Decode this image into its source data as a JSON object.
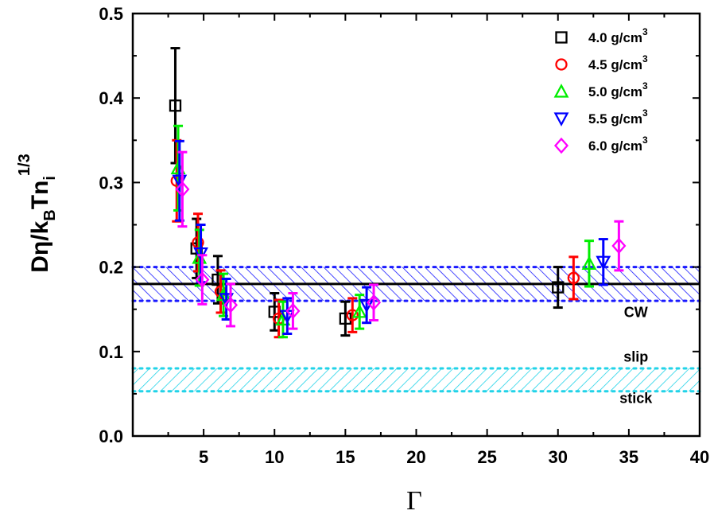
{
  "chart_data": {
    "type": "scatter",
    "xlabel": "Γ",
    "ylabel": {
      "main": "Dη/k",
      "sub1": "B",
      "mid": "Tn",
      "sub2": "i",
      "sup": "1/3"
    },
    "xlim": [
      0,
      40
    ],
    "ylim": [
      0.0,
      0.5
    ],
    "xticks": [
      5,
      10,
      15,
      20,
      25,
      30,
      35,
      40
    ],
    "yticks": [
      0.0,
      0.1,
      0.2,
      0.3,
      0.4,
      0.5
    ],
    "ytick_labels": [
      "0.0",
      "0.1",
      "0.2",
      "0.3",
      "0.4",
      "0.5"
    ],
    "legend_position": "top-right",
    "series": [
      {
        "name": "4.0 g/cm",
        "name_sup": "3",
        "color": "#000000",
        "marker": "square",
        "x": [
          3.0,
          4.5,
          6.0,
          10.0,
          15.0,
          30.0
        ],
        "y": [
          0.391,
          0.222,
          0.185,
          0.147,
          0.139,
          0.176
        ],
        "err": [
          0.068,
          0.035,
          0.028,
          0.022,
          0.02,
          0.024
        ]
      },
      {
        "name": "4.5 g/cm",
        "name_sup": "3",
        "color": "#ff0000",
        "marker": "circle",
        "x": [
          3.1,
          4.6,
          6.2,
          10.3,
          15.5,
          31.1
        ],
        "y": [
          0.302,
          0.229,
          0.171,
          0.139,
          0.143,
          0.187
        ],
        "err": [
          0.048,
          0.034,
          0.025,
          0.022,
          0.02,
          0.025
        ]
      },
      {
        "name": "5.0 g/cm",
        "name_sup": "3",
        "color": "#00ee00",
        "marker": "triangle-up",
        "x": [
          3.2,
          4.7,
          6.4,
          10.6,
          16.0,
          32.2
        ],
        "y": [
          0.317,
          0.211,
          0.167,
          0.138,
          0.147,
          0.204
        ],
        "err": [
          0.05,
          0.033,
          0.025,
          0.021,
          0.02,
          0.027
        ]
      },
      {
        "name": "5.5 g/cm",
        "name_sup": "3",
        "color": "#0000ff",
        "marker": "triangle-down",
        "x": [
          3.3,
          4.8,
          6.6,
          10.9,
          16.5,
          33.2
        ],
        "y": [
          0.302,
          0.216,
          0.162,
          0.142,
          0.155,
          0.206
        ],
        "err": [
          0.047,
          0.034,
          0.024,
          0.021,
          0.021,
          0.027
        ]
      },
      {
        "name": "6.0 g/cm",
        "name_sup": "3",
        "color": "#ff00ff",
        "marker": "diamond",
        "x": [
          3.5,
          4.9,
          6.9,
          11.3,
          17.0,
          34.3
        ],
        "y": [
          0.292,
          0.185,
          0.155,
          0.148,
          0.158,
          0.225
        ],
        "err": [
          0.044,
          0.029,
          0.025,
          0.021,
          0.021,
          0.029
        ]
      }
    ],
    "bands": [
      {
        "name": "CW",
        "center": 0.18,
        "low": 0.16,
        "high": 0.2,
        "color": "#1a1aff",
        "center_line_color": "#000000"
      },
      {
        "name": "slip-stick",
        "low": 0.053,
        "high": 0.08,
        "color": "#22d3e8"
      }
    ],
    "annotations": [
      {
        "text": "CW",
        "x": 35.5,
        "y": 0.141
      },
      {
        "text": "slip",
        "x": 35.5,
        "y": 0.088
      },
      {
        "text": "stick",
        "x": 35.5,
        "y": 0.039
      }
    ]
  }
}
